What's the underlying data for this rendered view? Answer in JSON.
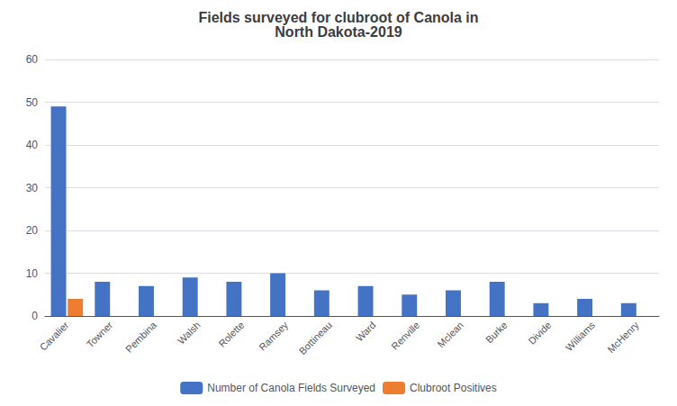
{
  "chart_data": {
    "type": "bar",
    "title": "Fields surveyed for clubroot of Canola in\nNorth Dakota-2019",
    "categories": [
      "Cavalier",
      "Towner",
      "Pembina",
      "Walsh",
      "Rolette",
      "Ramsey",
      "Bottineau",
      "Ward",
      "Renville",
      "Mclean",
      "Burke",
      "Divide",
      "Williams",
      "McHenry"
    ],
    "series": [
      {
        "name": "Number of Canola Fields Surveyed",
        "color": "#4472C4",
        "values": [
          49,
          8,
          7,
          9,
          8,
          10,
          6,
          7,
          5,
          6,
          8,
          3,
          4,
          3
        ]
      },
      {
        "name": "Clubroot Positives",
        "color": "#ED7D31",
        "values": [
          4,
          0,
          0,
          0,
          0,
          0,
          0,
          0,
          0,
          0,
          0,
          0,
          0,
          0
        ]
      }
    ],
    "ylim": [
      0,
      60
    ],
    "yticks": [
      0,
      10,
      20,
      30,
      40,
      50,
      60
    ],
    "grid": true,
    "legend": "bottom"
  }
}
